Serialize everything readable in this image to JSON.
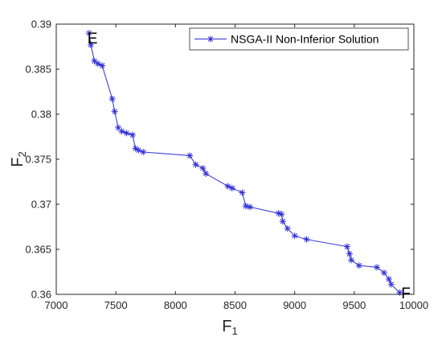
{
  "chart_data": {
    "type": "line",
    "xlabel": "F",
    "xlabel_sub": "1",
    "ylabel": "F",
    "ylabel_sub": "2",
    "xlim": [
      7000,
      10000
    ],
    "ylim": [
      0.36,
      0.39
    ],
    "xticks": [
      7000,
      7500,
      8000,
      8500,
      9000,
      9500,
      10000
    ],
    "xtick_labels": [
      "7000",
      "7500",
      "8000",
      "8500",
      "9000",
      "9500",
      "10000"
    ],
    "yticks": [
      0.36,
      0.365,
      0.37,
      0.375,
      0.38,
      0.385,
      0.39
    ],
    "ytick_labels": [
      "0.36",
      "0.365",
      "0.37",
      "0.375",
      "0.38",
      "0.385",
      "0.39"
    ],
    "grid": false,
    "legend_position": "top-right",
    "marker": "asterisk",
    "series": [
      {
        "name": "NSGA-II Non-Inferior Solution",
        "color": "#2f2fd6",
        "x": [
          7275,
          7290,
          7320,
          7350,
          7385,
          7470,
          7490,
          7520,
          7550,
          7590,
          7640,
          7665,
          7690,
          7730,
          8120,
          8170,
          8230,
          8255,
          8440,
          8475,
          8560,
          8590,
          8625,
          8865,
          8890,
          8900,
          8940,
          9000,
          9100,
          9440,
          9460,
          9475,
          9540,
          9690,
          9750,
          9790,
          9810,
          9880
        ],
        "y": [
          0.389,
          0.3877,
          0.3859,
          0.3856,
          0.3854,
          0.3817,
          0.3803,
          0.3785,
          0.3781,
          0.3779,
          0.3777,
          0.3762,
          0.376,
          0.3758,
          0.3754,
          0.3744,
          0.374,
          0.3734,
          0.372,
          0.3718,
          0.3713,
          0.3698,
          0.3697,
          0.369,
          0.3689,
          0.3681,
          0.3673,
          0.3665,
          0.3661,
          0.3653,
          0.3645,
          0.3638,
          0.3632,
          0.363,
          0.3624,
          0.3617,
          0.3611,
          0.3602
        ]
      }
    ],
    "annotations": [
      {
        "text": "E",
        "x": 7275,
        "y": 0.389
      },
      {
        "text": "F",
        "x": 9880,
        "y": 0.3602
      }
    ]
  }
}
